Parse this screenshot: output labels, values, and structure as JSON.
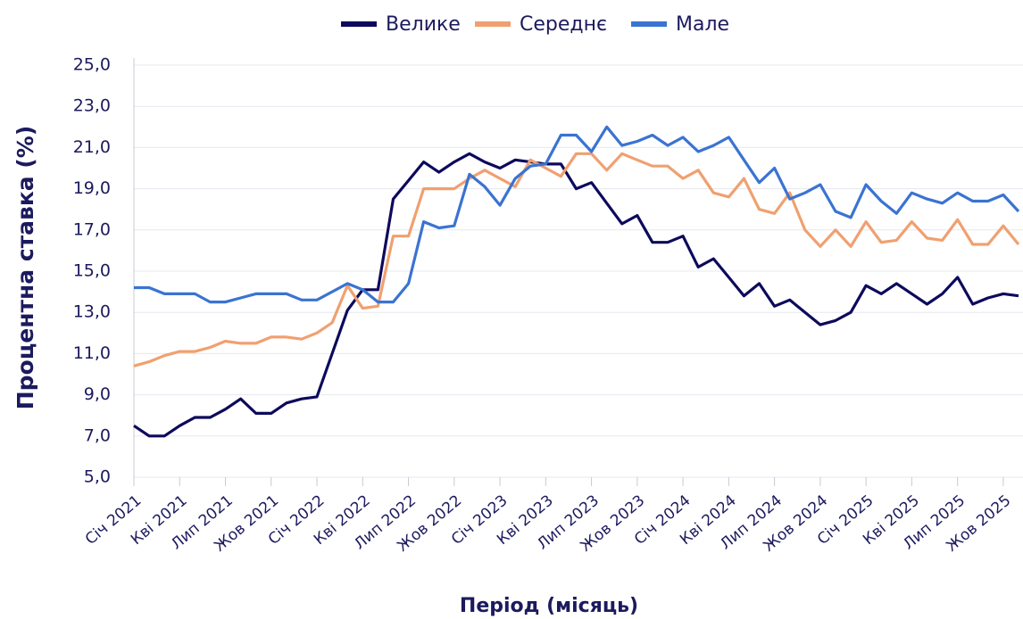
{
  "chart_data": {
    "type": "line",
    "y_label": "Процентна ставка (%)",
    "x_label": "Період (місяць)",
    "categories": [
      "Січ 2021",
      null,
      null,
      "Кві 2021",
      null,
      null,
      "Лип 2021",
      null,
      null,
      "Жов 2021",
      null,
      null,
      "Січ 2022",
      null,
      null,
      "Кві 2022",
      null,
      null,
      "Лип 2022",
      null,
      null,
      "Жов 2022",
      null,
      null,
      "Січ 2023",
      null,
      null,
      "Кві 2023",
      null,
      null,
      "Лип 2023",
      null,
      null,
      "Жов 2023",
      null,
      null,
      "Січ 2024",
      null,
      null,
      "Кві 2024",
      null,
      null,
      "Лип 2024",
      null,
      null,
      "Жов 2024",
      null,
      null,
      "Січ 2025",
      null,
      null,
      "Кві 2025",
      null,
      null,
      "Лип 2025",
      null,
      null,
      "Жов 2025",
      null
    ],
    "series": [
      {
        "name": "Велике",
        "color": "#0d0a5c",
        "values": [
          7.5,
          7.0,
          7.0,
          7.5,
          7.9,
          7.9,
          8.3,
          8.8,
          8.1,
          8.1,
          8.6,
          8.8,
          8.9,
          11.0,
          13.1,
          14.1,
          14.1,
          18.5,
          19.4,
          20.3,
          19.8,
          20.3,
          20.7,
          20.3,
          20.0,
          20.4,
          20.3,
          20.2,
          20.2,
          19.0,
          19.3,
          18.3,
          17.3,
          17.7,
          16.4,
          16.4,
          16.7,
          15.2,
          15.6,
          14.7,
          13.8,
          14.4,
          13.3,
          13.6,
          13.0,
          12.4,
          12.6,
          13.0,
          14.3,
          13.9,
          14.4,
          13.9,
          13.4,
          13.9,
          14.7,
          13.4,
          13.7,
          13.9,
          13.8
        ]
      },
      {
        "name": "Середнє",
        "color": "#f0a070",
        "values": [
          10.4,
          10.6,
          10.9,
          11.1,
          11.1,
          11.3,
          11.6,
          11.5,
          11.5,
          11.8,
          11.8,
          11.7,
          12.0,
          12.5,
          14.3,
          13.2,
          13.3,
          16.7,
          16.7,
          19.0,
          19.0,
          19.0,
          19.5,
          19.9,
          19.5,
          19.1,
          20.4,
          20.0,
          19.6,
          20.7,
          20.7,
          19.9,
          20.7,
          20.4,
          20.1,
          20.1,
          19.5,
          19.9,
          18.8,
          18.6,
          19.5,
          18.0,
          17.8,
          18.8,
          17.0,
          16.2,
          17.0,
          16.2,
          17.4,
          16.4,
          16.5,
          17.4,
          16.6,
          16.5,
          17.5,
          16.3,
          16.3,
          17.2,
          16.3
        ]
      },
      {
        "name": "Мале",
        "color": "#3a73d2",
        "values": [
          14.2,
          14.2,
          13.9,
          13.9,
          13.9,
          13.5,
          13.5,
          13.7,
          13.9,
          13.9,
          13.9,
          13.6,
          13.6,
          14.0,
          14.4,
          14.1,
          13.5,
          13.5,
          14.4,
          17.4,
          17.1,
          17.2,
          19.7,
          19.1,
          18.2,
          19.5,
          20.1,
          20.2,
          21.6,
          21.6,
          20.8,
          22.0,
          21.1,
          21.3,
          21.6,
          21.1,
          21.5,
          20.8,
          21.1,
          21.5,
          20.4,
          19.3,
          20.0,
          18.5,
          18.8,
          19.2,
          17.9,
          17.6,
          19.2,
          18.4,
          17.8,
          18.8,
          18.5,
          18.3,
          18.8,
          18.4,
          18.4,
          18.7,
          17.9
        ]
      }
    ],
    "ylim": [
      5,
      25
    ],
    "yticks": [
      {
        "value": 5,
        "label": "5,0"
      },
      {
        "value": 7,
        "label": "7,0"
      },
      {
        "value": 9,
        "label": "9,0"
      },
      {
        "value": 11,
        "label": "11,0"
      },
      {
        "value": 13,
        "label": "13,0"
      },
      {
        "value": 15,
        "label": "15,0"
      },
      {
        "value": 17,
        "label": "17,0"
      },
      {
        "value": 19,
        "label": "19,0"
      },
      {
        "value": 21,
        "label": "21,0"
      },
      {
        "value": 23,
        "label": "23,0"
      },
      {
        "value": 25,
        "label": "25,0"
      }
    ],
    "grid": true,
    "legend": "top"
  }
}
